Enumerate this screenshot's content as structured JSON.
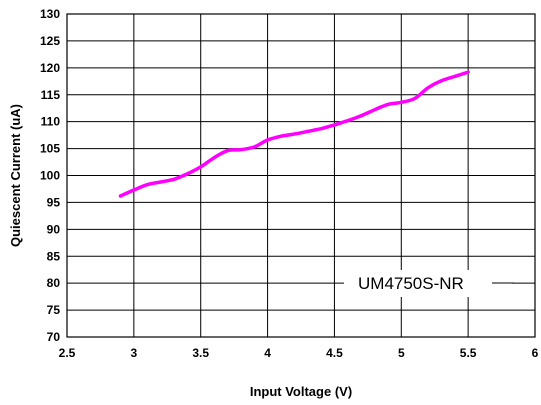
{
  "chart_data": {
    "type": "line",
    "xlabel": "Input Voltage (V)",
    "ylabel": "Quiescent Current (uA)",
    "xlim": [
      2.5,
      6
    ],
    "ylim": [
      70,
      130
    ],
    "xticks": [
      "2.5",
      "3",
      "3.5",
      "4",
      "4.5",
      "5",
      "5.5",
      "6"
    ],
    "yticks": [
      "70",
      "75",
      "80",
      "85",
      "90",
      "95",
      "100",
      "105",
      "110",
      "115",
      "120",
      "125",
      "130"
    ],
    "grid": true,
    "annotation": "UM4750S-NR",
    "series": [
      {
        "color": "#ff00ff",
        "x": [
          2.9,
          3.0,
          3.1,
          3.2,
          3.3,
          3.4,
          3.5,
          3.6,
          3.7,
          3.8,
          3.9,
          4.0,
          4.1,
          4.2,
          4.3,
          4.4,
          4.5,
          4.6,
          4.7,
          4.8,
          4.9,
          5.0,
          5.1,
          5.2,
          5.3,
          5.4,
          5.5
        ],
        "y": [
          96.2,
          97.3,
          98.3,
          98.8,
          99.3,
          100.3,
          101.6,
          103.3,
          104.6,
          104.8,
          105.3,
          106.6,
          107.3,
          107.7,
          108.2,
          108.7,
          109.4,
          110.2,
          111.1,
          112.2,
          113.2,
          113.6,
          114.3,
          116.3,
          117.6,
          118.4,
          119.2
        ]
      }
    ]
  }
}
